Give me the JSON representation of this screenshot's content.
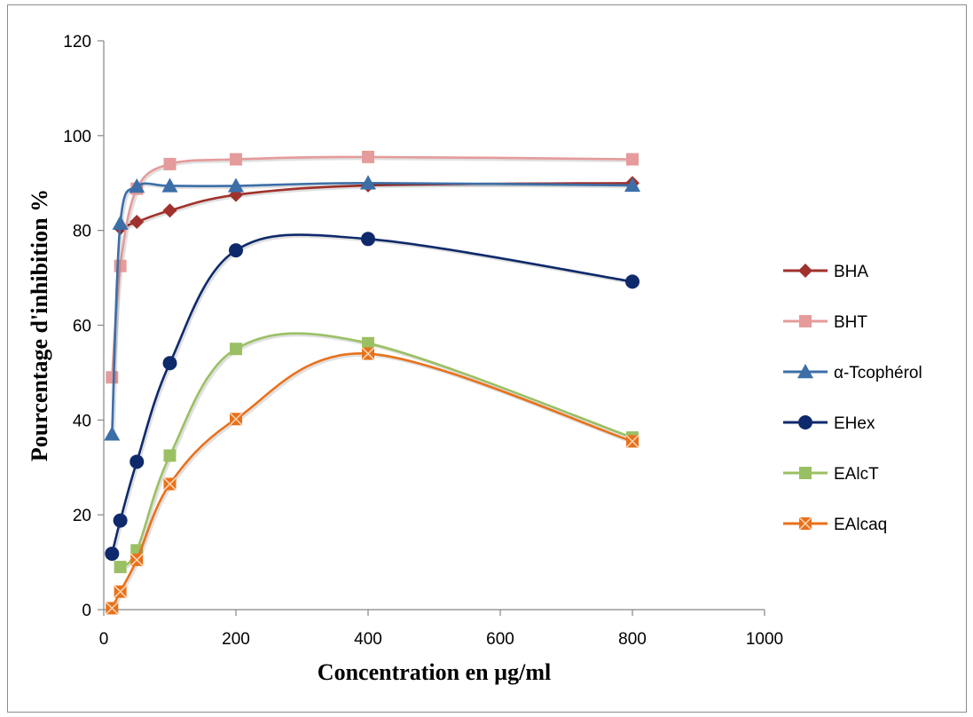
{
  "chart_data": {
    "type": "scatter",
    "title": "",
    "xlabel": "Concentration en µg/ml",
    "ylabel": "Pourcentage d'inhibition %",
    "xlim": [
      0,
      1000
    ],
    "ylim": [
      0,
      120
    ],
    "x_ticks": [
      "0",
      "200",
      "400",
      "600",
      "800",
      "1000"
    ],
    "y_ticks": [
      "0",
      "20",
      "40",
      "60",
      "80",
      "100",
      "120"
    ],
    "grid": false,
    "legend_position": "right",
    "series": [
      {
        "name": "BHA",
        "color": "#a0312c",
        "marker": "diamond",
        "points": [
          [
            25,
            80.5
          ],
          [
            50,
            81.8
          ],
          [
            100,
            84.2
          ],
          [
            200,
            87.5
          ],
          [
            400,
            89.5
          ],
          [
            800,
            90.0
          ]
        ]
      },
      {
        "name": "BHT",
        "color": "#e59b9b",
        "marker": "square",
        "points": [
          [
            12.5,
            49.0
          ],
          [
            25,
            72.5
          ],
          [
            50,
            88.8
          ],
          [
            100,
            94.0
          ],
          [
            200,
            95.0
          ],
          [
            400,
            95.5
          ],
          [
            800,
            95.0
          ]
        ]
      },
      {
        "name": "α-Tcophérol",
        "color": "#3c6ea8",
        "marker": "triangle",
        "points": [
          [
            12.5,
            37.0
          ],
          [
            25,
            81.5
          ],
          [
            50,
            89.3
          ],
          [
            100,
            89.4
          ],
          [
            200,
            89.4
          ],
          [
            400,
            90.0
          ],
          [
            800,
            89.5
          ]
        ]
      },
      {
        "name": "EHex",
        "color": "#0f2a6b",
        "marker": "circle",
        "points": [
          [
            12.5,
            11.8
          ],
          [
            25,
            18.8
          ],
          [
            50,
            31.2
          ],
          [
            100,
            52.0
          ],
          [
            200,
            75.8
          ],
          [
            400,
            78.2
          ],
          [
            800,
            69.2
          ]
        ]
      },
      {
        "name": "EAlcT",
        "color": "#9bc063",
        "marker": "square",
        "points": [
          [
            25,
            9.0
          ],
          [
            50,
            12.5
          ],
          [
            100,
            32.5
          ],
          [
            200,
            55.0
          ],
          [
            400,
            56.2
          ],
          [
            800,
            36.3
          ]
        ]
      },
      {
        "name": "EAlcaq",
        "color": "#e8711b",
        "marker": "star",
        "points": [
          [
            12.5,
            0.3
          ],
          [
            25,
            3.8
          ],
          [
            50,
            10.5
          ],
          [
            100,
            26.5
          ],
          [
            200,
            40.2
          ],
          [
            400,
            54.0
          ],
          [
            800,
            35.5
          ]
        ]
      }
    ]
  }
}
